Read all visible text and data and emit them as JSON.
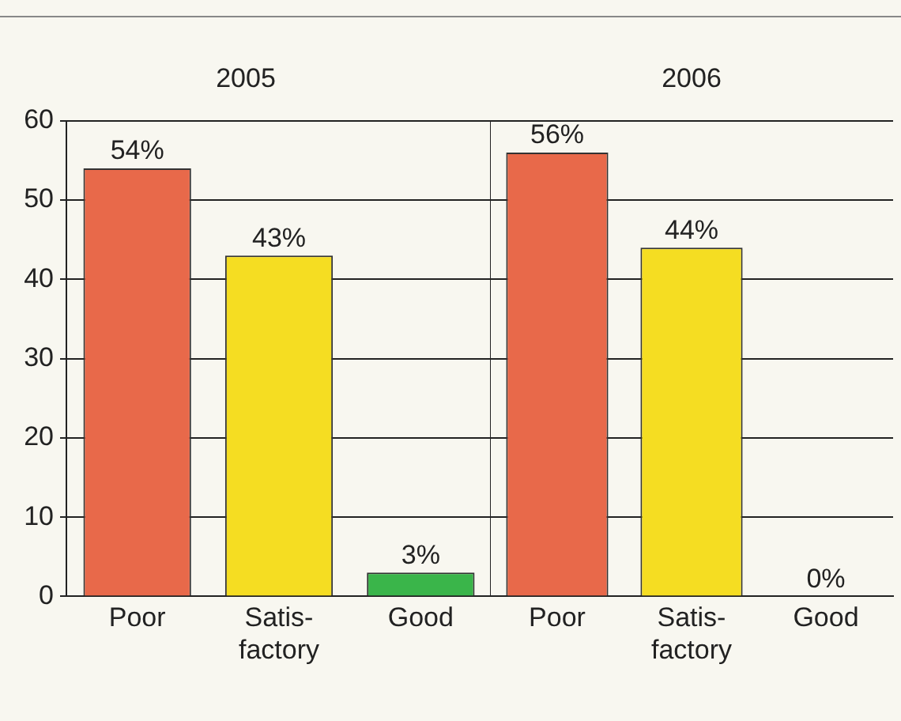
{
  "chart_data": [
    {
      "type": "bar",
      "title": "2005",
      "categories": [
        "Poor",
        "Satis-\nfactory",
        "Good"
      ],
      "values": [
        54,
        43,
        3
      ],
      "colors": [
        "#e8694a",
        "#f5dd22",
        "#3ab54a"
      ],
      "value_labels": [
        "54%",
        "43%",
        "3%"
      ],
      "ylim": [
        0,
        60
      ],
      "yticks": [
        0,
        10,
        20,
        30,
        40,
        50,
        60
      ],
      "grid": "y",
      "legend": false
    },
    {
      "type": "bar",
      "title": "2006",
      "categories": [
        "Poor",
        "Satis-\nfactory",
        "Good"
      ],
      "values": [
        56,
        44,
        0
      ],
      "colors": [
        "#e8694a",
        "#f5dd22",
        "#3ab54a"
      ],
      "value_labels": [
        "56%",
        "44%",
        "0%"
      ],
      "ylim": [
        0,
        60
      ],
      "yticks": [
        0,
        10,
        20,
        30,
        40,
        50,
        60
      ],
      "grid": "y",
      "legend": false,
      "tick_labels": "x"
    }
  ]
}
